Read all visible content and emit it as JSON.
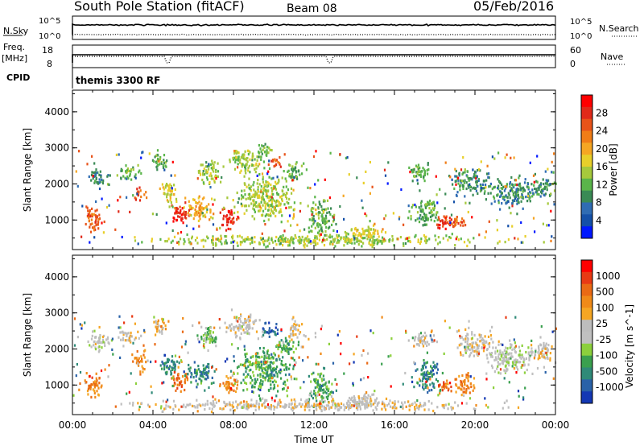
{
  "header": {
    "station": "South Pole Station (fitACF)",
    "beam": "Beam 08",
    "date": "05/Feb/2016"
  },
  "top_panels": {
    "nsky_label": "N.Sky",
    "nsky_ticks": [
      "10^5",
      "10^0"
    ],
    "nsearch_label": "N.Search",
    "nsearch_ticks": [
      "10^5",
      "10^0"
    ],
    "freq_label_1": "Freq.",
    "freq_label_2": "[MHz]",
    "freq_ticks": [
      "18",
      "8"
    ],
    "nave_label": "Nave",
    "nave_ticks": [
      "60",
      "0"
    ],
    "cpid_label": "CPID",
    "cpid_value": "themis 3300 RF"
  },
  "chart_data": [
    {
      "type": "heatmap",
      "name": "power",
      "ylabel": "Slant Range [km]",
      "yticks": [
        "1000",
        "2000",
        "3000",
        "4000"
      ],
      "ylim": [
        180,
        4600
      ],
      "xticks": [
        "00:00",
        "04:00",
        "08:00",
        "12:00",
        "16:00",
        "20:00",
        "00:00"
      ],
      "xlim_hours": [
        0,
        24
      ],
      "colorbar": {
        "label": "Power [dB]",
        "ticks": [
          "28",
          "24",
          "20",
          "16",
          "12",
          "8",
          "4"
        ],
        "colors": [
          "#0018ff",
          "#1450a8",
          "#2f6cb3",
          "#3a8a55",
          "#5ab54a",
          "#a6c93c",
          "#e8cf2a",
          "#f5a623",
          "#f07d17",
          "#e8531a",
          "#e02a1a",
          "#ff0000"
        ]
      },
      "clusters": [
        {
          "t": 1.0,
          "r": 1000,
          "dt": 0.7,
          "dr": 500,
          "level": 9
        },
        {
          "t": 1.2,
          "r": 2100,
          "dt": 0.8,
          "dr": 350,
          "level": 3
        },
        {
          "t": 2.8,
          "r": 2300,
          "dt": 0.8,
          "dr": 300,
          "level": 4
        },
        {
          "t": 3.3,
          "r": 1700,
          "dt": 0.4,
          "dr": 300,
          "level": 9
        },
        {
          "t": 4.3,
          "r": 2600,
          "dt": 0.6,
          "dr": 350,
          "level": 4
        },
        {
          "t": 4.8,
          "r": 1700,
          "dt": 0.6,
          "dr": 500,
          "level": 6
        },
        {
          "t": 5.3,
          "r": 1100,
          "dt": 0.7,
          "dr": 400,
          "level": 10
        },
        {
          "t": 6.3,
          "r": 1200,
          "dt": 1.0,
          "dr": 500,
          "level": 7
        },
        {
          "t": 6.8,
          "r": 2300,
          "dt": 0.8,
          "dr": 500,
          "level": 5
        },
        {
          "t": 7.8,
          "r": 1000,
          "dt": 0.7,
          "dr": 400,
          "level": 10
        },
        {
          "t": 8.5,
          "r": 2600,
          "dt": 1.2,
          "dr": 500,
          "level": 5
        },
        {
          "t": 9.6,
          "r": 2900,
          "dt": 0.6,
          "dr": 300,
          "level": 4
        },
        {
          "t": 10.0,
          "r": 2550,
          "dt": 0.5,
          "dr": 200,
          "level": 9
        },
        {
          "t": 11.0,
          "r": 2300,
          "dt": 0.7,
          "dr": 400,
          "level": 4
        },
        {
          "t": 9.5,
          "r": 1600,
          "dt": 2.0,
          "dr": 900,
          "level": 5
        },
        {
          "t": 12.3,
          "r": 1000,
          "dt": 1.0,
          "dr": 700,
          "level": 4
        },
        {
          "t": 14.5,
          "r": 600,
          "dt": 1.5,
          "dr": 300,
          "level": 6
        },
        {
          "t": 17.2,
          "r": 2300,
          "dt": 1.0,
          "dr": 300,
          "level": 4
        },
        {
          "t": 17.5,
          "r": 1200,
          "dt": 1.0,
          "dr": 600,
          "level": 4
        },
        {
          "t": 18.4,
          "r": 900,
          "dt": 0.6,
          "dr": 300,
          "level": 10
        },
        {
          "t": 19.0,
          "r": 900,
          "dt": 0.7,
          "dr": 300,
          "level": 9
        },
        {
          "t": 19.8,
          "r": 2000,
          "dt": 1.5,
          "dr": 500,
          "level": 3
        },
        {
          "t": 21.8,
          "r": 1700,
          "dt": 1.8,
          "dr": 600,
          "level": 3
        },
        {
          "t": 23.4,
          "r": 1900,
          "dt": 0.8,
          "dr": 500,
          "level": 3
        },
        {
          "t": 12.0,
          "r": 400,
          "dt": 12.0,
          "dr": 220,
          "level": 5
        }
      ]
    },
    {
      "type": "heatmap",
      "name": "velocity",
      "ylabel": "Slant Range [km]",
      "yticks": [
        "1000",
        "2000",
        "3000",
        "4000"
      ],
      "ylim": [
        180,
        4600
      ],
      "xticks": [
        "00:00",
        "04:00",
        "08:00",
        "12:00",
        "16:00",
        "20:00",
        "00:00"
      ],
      "xlim_hours": [
        0,
        24
      ],
      "xlabel": "Time UT",
      "colorbar": {
        "label": "Velocity [m s^-1]",
        "ticks": [
          "1000",
          "500",
          "100",
          "25",
          "-25",
          "-100",
          "-500",
          "-1000"
        ],
        "colors": [
          "#1438b4",
          "#2a62a8",
          "#2f8a78",
          "#3aa04e",
          "#8cd03c",
          "#c0c0c0",
          "#bdbdbd",
          "#f5a623",
          "#f08a18",
          "#ea6a14",
          "#e83a14",
          "#ff0000"
        ]
      },
      "clusters": [
        {
          "t": 1.0,
          "r": 1000,
          "dt": 0.7,
          "dr": 500,
          "level": 8
        },
        {
          "t": 1.3,
          "r": 2200,
          "dt": 0.8,
          "dr": 350,
          "level": 5
        },
        {
          "t": 2.8,
          "r": 2300,
          "dt": 0.8,
          "dr": 300,
          "level": 6
        },
        {
          "t": 3.3,
          "r": 1600,
          "dt": 0.5,
          "dr": 400,
          "level": 8
        },
        {
          "t": 4.3,
          "r": 2600,
          "dt": 0.6,
          "dr": 350,
          "level": 7
        },
        {
          "t": 4.8,
          "r": 1500,
          "dt": 0.6,
          "dr": 500,
          "level": 2
        },
        {
          "t": 5.3,
          "r": 1100,
          "dt": 0.7,
          "dr": 400,
          "level": 9
        },
        {
          "t": 6.3,
          "r": 1300,
          "dt": 1.0,
          "dr": 500,
          "level": 2
        },
        {
          "t": 6.8,
          "r": 2300,
          "dt": 0.8,
          "dr": 500,
          "level": 4
        },
        {
          "t": 7.8,
          "r": 1000,
          "dt": 0.7,
          "dr": 400,
          "level": 8
        },
        {
          "t": 8.5,
          "r": 2600,
          "dt": 1.2,
          "dr": 500,
          "level": 6
        },
        {
          "t": 9.8,
          "r": 2500,
          "dt": 0.7,
          "dr": 250,
          "level": 1
        },
        {
          "t": 10.5,
          "r": 2000,
          "dt": 0.8,
          "dr": 400,
          "level": 3
        },
        {
          "t": 11.0,
          "r": 2500,
          "dt": 0.6,
          "dr": 400,
          "level": 6
        },
        {
          "t": 9.5,
          "r": 1400,
          "dt": 2.0,
          "dr": 900,
          "level": 3
        },
        {
          "t": 12.3,
          "r": 900,
          "dt": 1.0,
          "dr": 700,
          "level": 3
        },
        {
          "t": 14.5,
          "r": 500,
          "dt": 1.5,
          "dr": 300,
          "level": 6
        },
        {
          "t": 17.3,
          "r": 2200,
          "dt": 1.0,
          "dr": 300,
          "level": 6
        },
        {
          "t": 17.6,
          "r": 1200,
          "dt": 1.0,
          "dr": 600,
          "level": 2
        },
        {
          "t": 18.5,
          "r": 900,
          "dt": 0.6,
          "dr": 300,
          "level": 9
        },
        {
          "t": 19.5,
          "r": 1000,
          "dt": 0.8,
          "dr": 400,
          "level": 8
        },
        {
          "t": 20.0,
          "r": 2100,
          "dt": 1.5,
          "dr": 500,
          "level": 6
        },
        {
          "t": 21.8,
          "r": 1700,
          "dt": 1.8,
          "dr": 600,
          "level": 5
        },
        {
          "t": 23.4,
          "r": 1900,
          "dt": 0.8,
          "dr": 500,
          "level": 6
        },
        {
          "t": 12.0,
          "r": 400,
          "dt": 12.0,
          "dr": 220,
          "level": 6
        }
      ]
    }
  ]
}
